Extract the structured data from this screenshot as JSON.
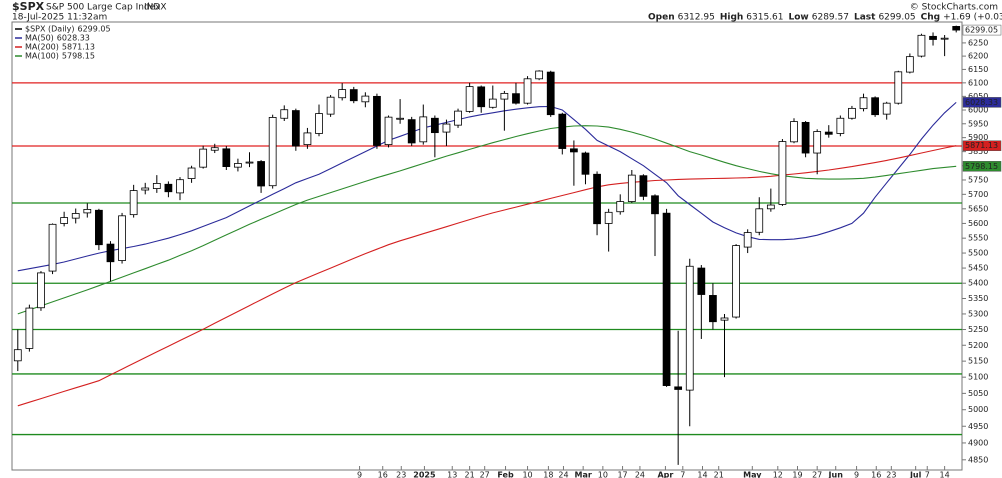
{
  "chart_data": {
    "type": "candlestick",
    "symbol": "$SPX",
    "title": "S&P 500 Large Cap Index",
    "exchange": "INDX",
    "date": "18-Jul-2025 11:32am",
    "credit": "© StockCharts.com",
    "quote": [
      {
        "label": "Open",
        "value": "6312.95"
      },
      {
        "label": "High",
        "value": "6315.61"
      },
      {
        "label": "Low",
        "value": "6289.57"
      },
      {
        "label": "Last",
        "value": "6299.05"
      },
      {
        "label": "Chg",
        "value": "+1.69 (+0.03%)"
      }
    ],
    "log_scale": true,
    "ylim": [
      4820,
      6330
    ],
    "yticks": [
      4850,
      4900,
      4950,
      5000,
      5050,
      5100,
      5150,
      5200,
      5250,
      5300,
      5350,
      5400,
      5450,
      5500,
      5550,
      5600,
      5650,
      5700,
      5750,
      5800,
      5850,
      5900,
      5950,
      6000,
      6050,
      6100,
      6150,
      6200,
      6250
    ],
    "xlim": [
      -0.5,
      81.5
    ],
    "xticks": [
      {
        "value": 29.5,
        "label": "9"
      },
      {
        "value": 31.5,
        "label": "16"
      },
      {
        "value": 33.1,
        "label": "23"
      },
      {
        "value": 35.1,
        "label": "2025"
      },
      {
        "value": 37.5,
        "label": "13"
      },
      {
        "value": 39.0,
        "label": "21"
      },
      {
        "value": 40.3,
        "label": "27"
      },
      {
        "value": 42.1,
        "label": "Feb"
      },
      {
        "value": 44.0,
        "label": "10"
      },
      {
        "value": 45.8,
        "label": "18"
      },
      {
        "value": 47.1,
        "label": "24"
      },
      {
        "value": 48.8,
        "label": "Mar"
      },
      {
        "value": 50.5,
        "label": "10"
      },
      {
        "value": 52.2,
        "label": "17"
      },
      {
        "value": 53.7,
        "label": "24"
      },
      {
        "value": 55.9,
        "label": "Apr"
      },
      {
        "value": 57.4,
        "label": "7"
      },
      {
        "value": 59.1,
        "label": "14"
      },
      {
        "value": 60.5,
        "label": "21"
      },
      {
        "value": 63.4,
        "label": "May"
      },
      {
        "value": 65.6,
        "label": "12"
      },
      {
        "value": 67.3,
        "label": "19"
      },
      {
        "value": 69.0,
        "label": "27"
      },
      {
        "value": 70.6,
        "label": "Jun"
      },
      {
        "value": 72.4,
        "label": "9"
      },
      {
        "value": 74.1,
        "label": "16"
      },
      {
        "value": 75.4,
        "label": "23"
      },
      {
        "value": 77.5,
        "label": "Jul"
      },
      {
        "value": 78.5,
        "label": "7"
      },
      {
        "value": 80.0,
        "label": "14"
      }
    ],
    "candles": {
      "name": "$SPX (Daily)",
      "last_label": "6299.05",
      "color": "#000000",
      "open": [
        5151,
        5190,
        5320,
        5440,
        5600,
        5618,
        5636,
        5645,
        5530,
        5475,
        5630,
        5715,
        5720,
        5735,
        5705,
        5755,
        5795,
        5855,
        5860,
        5795,
        5810,
        5815,
        5730,
        5970,
        5998,
        5875,
        5915,
        5985,
        6045,
        6075,
        6030,
        6050,
        5875,
        5970,
        5965,
        5885,
        5970,
        5920,
        5945,
        5995,
        6085,
        6010,
        6040,
        6060,
        6025,
        6115,
        6140,
        5985,
        5860,
        5845,
        5770,
        5600,
        5640,
        5675,
        5765,
        5695,
        5635,
        5070,
        5060,
        5450,
        5360,
        5280,
        5290,
        5520,
        5570,
        5650,
        5665,
        5885,
        5955,
        5845,
        5920,
        5915,
        5970,
        6005,
        6045,
        5985,
        6025,
        6140,
        6200,
        6275,
        6265,
        6313
      ],
      "high": [
        5250,
        5330,
        5440,
        5600,
        5640,
        5651,
        5669,
        5650,
        5540,
        5636,
        5733,
        5740,
        5767,
        5745,
        5760,
        5800,
        5871,
        5878,
        5870,
        5825,
        5848,
        5820,
        5983,
        6017,
        6005,
        5935,
        6020,
        6055,
        6099,
        6085,
        6065,
        6060,
        5980,
        6040,
        5975,
        6020,
        5980,
        5965,
        6005,
        6100,
        6090,
        6090,
        6070,
        6100,
        6125,
        6147,
        6145,
        5990,
        5890,
        5850,
        5780,
        5650,
        5700,
        5785,
        5770,
        5700,
        5650,
        5246,
        5481,
        5460,
        5400,
        5300,
        5530,
        5580,
        5690,
        5720,
        5895,
        5970,
        5960,
        5930,
        5945,
        5980,
        6015,
        6060,
        6050,
        6030,
        6145,
        6210,
        6285,
        6290,
        6280,
        6316
      ],
      "low": [
        5119,
        5180,
        5310,
        5430,
        5590,
        5600,
        5620,
        5510,
        5406,
        5465,
        5620,
        5700,
        5705,
        5690,
        5680,
        5740,
        5790,
        5845,
        5785,
        5780,
        5795,
        5705,
        5720,
        5960,
        5853,
        5860,
        5905,
        5975,
        6035,
        6025,
        6010,
        5860,
        5865,
        5950,
        5870,
        5875,
        5830,
        5870,
        5935,
        5990,
        5990,
        6005,
        5925,
        6020,
        6020,
        6110,
        5975,
        5840,
        5730,
        5735,
        5560,
        5505,
        5630,
        5670,
        5680,
        5490,
        5070,
        4835,
        4950,
        5220,
        5250,
        5100,
        5285,
        5500,
        5560,
        5640,
        5660,
        5880,
        5830,
        5770,
        5900,
        5905,
        5965,
        5995,
        5975,
        5965,
        6020,
        6135,
        6195,
        6240,
        6200,
        6290
      ],
      "close": [
        5186,
        5319,
        5434,
        5597,
        5620,
        5634,
        5648,
        5528,
        5471,
        5626,
        5713,
        5722,
        5738,
        5709,
        5751,
        5792,
        5859,
        5864,
        5797,
        5808,
        5813,
        5729,
        5973,
        6001,
        5870,
        5917,
        5987,
        6047,
        6075,
        6034,
        6051,
        5872,
        5974,
        5970,
        5881,
        5975,
        5918,
        5949,
        5996,
        6086,
        6012,
        6040,
        6061,
        6025,
        6115,
        6144,
        5983,
        5861,
        5849,
        5770,
        5599,
        5638,
        5675,
        5767,
        5693,
        5633,
        5074,
        5062,
        5456,
        5363,
        5275,
        5287,
        5525,
        5569,
        5650,
        5663,
        5886,
        5958,
        5845,
        5922,
        5912,
        5970,
        6006,
        6045,
        5983,
        6025,
        6141,
        6198,
        6279,
        6263,
        6268,
        6299
      ]
    },
    "series": [
      {
        "name": "MA(50)",
        "color": "#2b2b9a",
        "last_label": "6028.33",
        "values": [
          5441,
          5448,
          5455,
          5462,
          5470,
          5480,
          5490,
          5500,
          5508,
          5515,
          5522,
          5530,
          5540,
          5550,
          5562,
          5575,
          5590,
          5605,
          5620,
          5640,
          5660,
          5680,
          5700,
          5720,
          5740,
          5755,
          5770,
          5790,
          5810,
          5830,
          5850,
          5870,
          5890,
          5905,
          5920,
          5935,
          5945,
          5955,
          5965,
          5975,
          5983,
          5990,
          5997,
          6003,
          6008,
          6012,
          6013,
          6000,
          5965,
          5930,
          5890,
          5870,
          5850,
          5825,
          5800,
          5770,
          5740,
          5695,
          5665,
          5635,
          5605,
          5585,
          5568,
          5555,
          5546,
          5545,
          5545,
          5547,
          5552,
          5560,
          5572,
          5585,
          5600,
          5635,
          5690,
          5740,
          5790,
          5840,
          5895,
          5945,
          5990,
          6028
        ]
      },
      {
        "name": "MA(200)",
        "color": "#d42020",
        "last_label": "5871.13",
        "values": [
          5012,
          5023,
          5034,
          5045,
          5056,
          5067,
          5078,
          5089,
          5107,
          5125,
          5143,
          5161,
          5179,
          5197,
          5215,
          5233,
          5251,
          5270,
          5289,
          5308,
          5327,
          5346,
          5365,
          5384,
          5402,
          5418,
          5434,
          5450,
          5466,
          5482,
          5498,
          5513,
          5528,
          5541,
          5553,
          5565,
          5577,
          5589,
          5601,
          5613,
          5625,
          5636,
          5646,
          5656,
          5666,
          5676,
          5686,
          5696,
          5706,
          5716,
          5726,
          5733,
          5738,
          5742,
          5745,
          5748,
          5750,
          5752,
          5753,
          5754,
          5755,
          5756,
          5757,
          5758,
          5760,
          5763,
          5767,
          5771,
          5775,
          5780,
          5785,
          5791,
          5797,
          5804,
          5811,
          5819,
          5827,
          5836,
          5845,
          5854,
          5863,
          5871
        ]
      },
      {
        "name": "MA(100)",
        "color": "#2e8b2e",
        "last_label": "5798.15",
        "values": [
          5300,
          5313,
          5326,
          5339,
          5352,
          5365,
          5378,
          5392,
          5406,
          5420,
          5434,
          5448,
          5462,
          5476,
          5492,
          5508,
          5525,
          5543,
          5561,
          5579,
          5597,
          5614,
          5631,
          5648,
          5665,
          5680,
          5693,
          5706,
          5719,
          5732,
          5745,
          5758,
          5770,
          5782,
          5795,
          5808,
          5821,
          5834,
          5846,
          5858,
          5870,
          5882,
          5893,
          5904,
          5914,
          5924,
          5933,
          5938,
          5942,
          5943,
          5942,
          5938,
          5930,
          5920,
          5908,
          5895,
          5880,
          5865,
          5850,
          5838,
          5825,
          5812,
          5800,
          5790,
          5780,
          5772,
          5765,
          5760,
          5756,
          5754,
          5753,
          5753,
          5754,
          5756,
          5760,
          5766,
          5772,
          5778,
          5784,
          5790,
          5794,
          5798
        ]
      }
    ],
    "levels": [
      {
        "value": 6100,
        "color": "#e02020"
      },
      {
        "value": 5870,
        "color": "#e02020"
      },
      {
        "value": 5670,
        "color": "#1f8a1f"
      },
      {
        "value": 5400,
        "color": "#1f8a1f"
      },
      {
        "value": 5250,
        "color": "#1f8a1f"
      },
      {
        "value": 5110,
        "color": "#1f8a1f"
      },
      {
        "value": 4925,
        "color": "#1f8a1f"
      }
    ]
  }
}
